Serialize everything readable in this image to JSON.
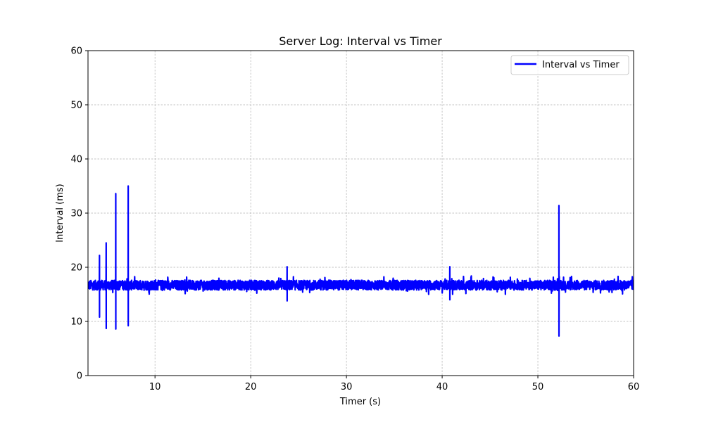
{
  "chart_data": {
    "type": "line",
    "title": "Server Log: Interval vs Timer",
    "xlabel": "Timer (s)",
    "ylabel": "Interval (ms)",
    "xlim": [
      3,
      60
    ],
    "ylim": [
      0,
      60
    ],
    "xticks": [
      10,
      20,
      30,
      40,
      50,
      60
    ],
    "yticks": [
      0,
      10,
      20,
      30,
      40,
      50,
      60
    ],
    "grid": true,
    "legend_position": "top-right",
    "baseline_interval_ms": 16.7,
    "series": [
      {
        "name": "Interval vs Timer",
        "color": "#0000ff",
        "spikes": [
          {
            "x": 4.2,
            "high": 22.2,
            "low": 10.8
          },
          {
            "x": 4.9,
            "high": 24.5,
            "low": 8.7
          },
          {
            "x": 5.9,
            "high": 33.6,
            "low": 8.6
          },
          {
            "x": 7.2,
            "high": 35.0,
            "low": 9.2
          },
          {
            "x": 23.8,
            "high": 20.1,
            "low": 13.8
          },
          {
            "x": 40.8,
            "high": 20.1,
            "low": 14.0
          },
          {
            "x": 52.2,
            "high": 31.4,
            "low": 7.3
          }
        ]
      }
    ]
  }
}
